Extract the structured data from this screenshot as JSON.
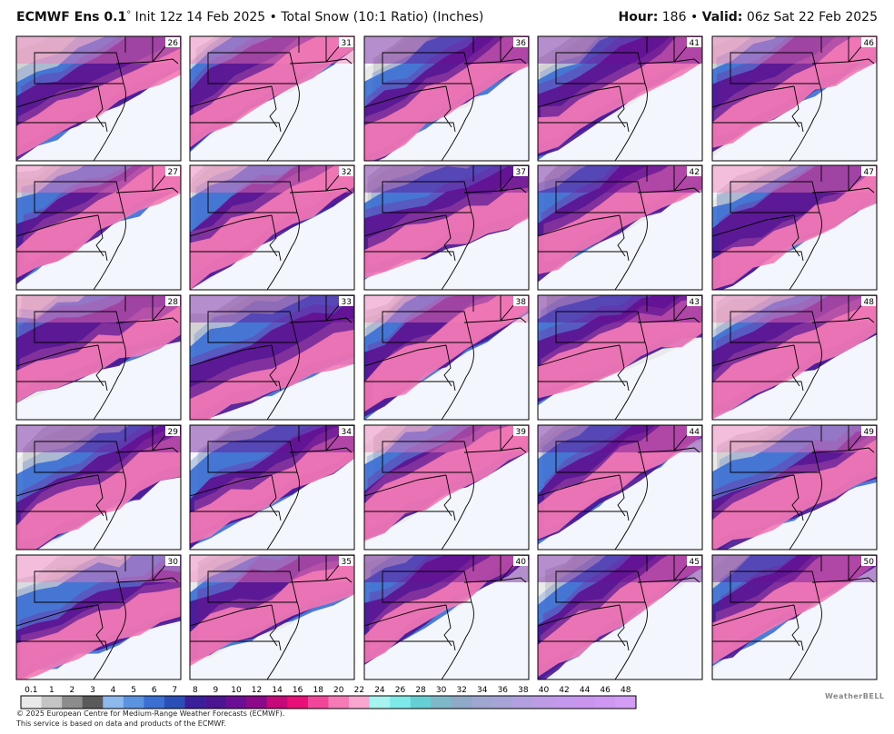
{
  "header": {
    "model": "ECMWF Ens 0.1",
    "degree": "°",
    "description": "Init 12z 14 Feb 2025 • Total Snow (10:1 Ratio) (Inches)",
    "hour_label": "Hour:",
    "hour": "186 •",
    "valid_label": "Valid:",
    "valid": "06z Sat 22 Feb 2025"
  },
  "panels": [
    {
      "member": 26
    },
    {
      "member": 31
    },
    {
      "member": 36
    },
    {
      "member": 41
    },
    {
      "member": 46
    },
    {
      "member": 27
    },
    {
      "member": 32
    },
    {
      "member": 37
    },
    {
      "member": 42
    },
    {
      "member": 47
    },
    {
      "member": 28
    },
    {
      "member": 33
    },
    {
      "member": 38
    },
    {
      "member": 43
    },
    {
      "member": 48
    },
    {
      "member": 29
    },
    {
      "member": 34
    },
    {
      "member": 39
    },
    {
      "member": 44
    },
    {
      "member": 49
    },
    {
      "member": 30
    },
    {
      "member": 35
    },
    {
      "member": 40
    },
    {
      "member": 45
    },
    {
      "member": 50
    }
  ],
  "legend": {
    "levels": [
      {
        "label": "0.1",
        "color": "#e9e9e9"
      },
      {
        "label": "1",
        "color": "#c4c4c4"
      },
      {
        "label": "2",
        "color": "#8c8c8c"
      },
      {
        "label": "3",
        "color": "#5a5a5a"
      },
      {
        "label": "4",
        "color": "#8fb8ec"
      },
      {
        "label": "5",
        "color": "#5a93e0"
      },
      {
        "label": "6",
        "color": "#3b6fd3"
      },
      {
        "label": "7",
        "color": "#2a4fb8"
      },
      {
        "label": "8",
        "color": "#3a1f9a"
      },
      {
        "label": "9",
        "color": "#4b1592"
      },
      {
        "label": "10",
        "color": "#6a0f95"
      },
      {
        "label": "12",
        "color": "#8c0a8a"
      },
      {
        "label": "14",
        "color": "#c5097a"
      },
      {
        "label": "16",
        "color": "#e80f78"
      },
      {
        "label": "18",
        "color": "#f2469a"
      },
      {
        "label": "20",
        "color": "#f57ab6"
      },
      {
        "label": "22",
        "color": "#f8a6cf"
      },
      {
        "label": "24",
        "color": "#a6f3f0"
      },
      {
        "label": "26",
        "color": "#7fe9ea"
      },
      {
        "label": "28",
        "color": "#66cfd6"
      },
      {
        "label": "30",
        "color": "#7fb9c9"
      },
      {
        "label": "32",
        "color": "#8fa9c9"
      },
      {
        "label": "34",
        "color": "#9fa7d1"
      },
      {
        "label": "36",
        "color": "#a6a3d6"
      },
      {
        "label": "38",
        "color": "#b39fe0"
      },
      {
        "label": "40",
        "color": "#bd9be6"
      },
      {
        "label": "42",
        "color": "#c498ec"
      },
      {
        "label": "44",
        "color": "#c995ef"
      },
      {
        "label": "46",
        "color": "#cf96f2"
      },
      {
        "label": "48",
        "color": "#d39cf5"
      }
    ]
  },
  "footer": {
    "line1": "© 2025 European Centre for Medium-Range Weather Forecasts (ECMWF).",
    "line2": "This service is based on data and products of the ECMWF.",
    "logo": "WeatherBELL"
  }
}
